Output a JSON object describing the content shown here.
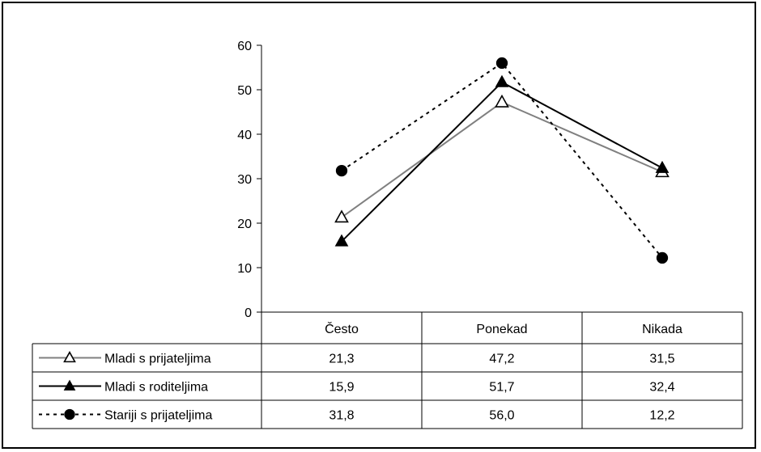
{
  "chart_data": {
    "type": "line",
    "title": "",
    "xlabel": "",
    "ylabel": "",
    "categories": [
      "Često",
      "Ponekad",
      "Nikada"
    ],
    "ylim": [
      0,
      60
    ],
    "yticks": [
      0,
      10,
      20,
      30,
      40,
      50,
      60
    ],
    "grid": false,
    "legend": "data-table",
    "series": [
      {
        "name": "Mladi s prijateljima",
        "values": [
          21.3,
          47.2,
          31.5
        ],
        "labels": [
          "21,3",
          "47,2",
          "31,5"
        ],
        "color": "#808080",
        "line_style": "solid",
        "marker": "triangle-open"
      },
      {
        "name": "Mladi s roditeljima",
        "values": [
          15.9,
          51.7,
          32.4
        ],
        "labels": [
          "15,9",
          "51,7",
          "32,4"
        ],
        "color": "#000000",
        "line_style": "solid",
        "marker": "triangle-filled"
      },
      {
        "name": "Stariji s prijateljima",
        "values": [
          31.8,
          56.0,
          12.2
        ],
        "labels": [
          "31,8",
          "56,0",
          "12,2"
        ],
        "color": "#000000",
        "line_style": "dashed",
        "marker": "circle-filled"
      }
    ]
  }
}
